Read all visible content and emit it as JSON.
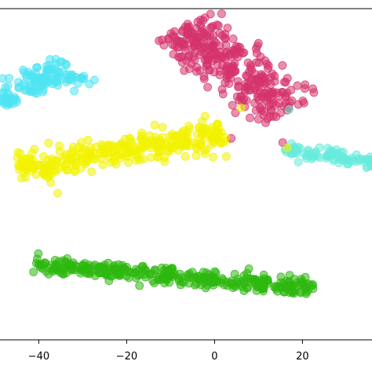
{
  "chart_data": {
    "type": "scatter",
    "xlim": [
      -49,
      36
    ],
    "ylim": [
      -58,
      62
    ],
    "x_ticks": [
      -40,
      -20,
      0,
      20
    ],
    "x_tick_labels": [
      "−40",
      "−20",
      "0",
      "20"
    ],
    "grid": false,
    "legend": "none",
    "series": [
      {
        "color": "#d6336c",
        "clusters": [
          {
            "from": [
              -8.0,
              55.0
            ],
            "to": [
              17.0,
              25.0
            ],
            "spread": 4.2,
            "count": 330
          }
        ]
      },
      {
        "color": "#4fe4f2",
        "clusters": [
          {
            "from": [
              -49.0,
              29.0
            ],
            "to": [
              -33.0,
              41.0
            ],
            "spread": 2.4,
            "count": 120
          },
          {
            "from": [
              -33.0,
              37.0
            ],
            "to": [
              -27.0,
              36.0
            ],
            "spread": 0.9,
            "count": 12
          }
        ]
      },
      {
        "color": "#f2f200",
        "clusters": [
          {
            "from": [
              -45.0,
              4.0
            ],
            "to": [
              2.0,
              17.0
            ],
            "spread": 2.8,
            "count": 320
          }
        ]
      },
      {
        "color": "#66ebdc",
        "clusters": [
          {
            "from": [
              16.0,
              11.0
            ],
            "to": [
              36.0,
              6.0
            ],
            "spread": 1.2,
            "count": 90
          }
        ]
      },
      {
        "color": "#2eb80f",
        "clusters": [
          {
            "from": [
              -41.0,
              -31.0
            ],
            "to": [
              23.0,
              -39.0
            ],
            "spread": 1.6,
            "count": 340
          }
        ]
      }
    ],
    "outliers": [
      {
        "x": 3.8,
        "y": 15.0,
        "color": "#d6336c"
      },
      {
        "x": 15.5,
        "y": 13.5,
        "color": "#d6336c"
      },
      {
        "x": 16.5,
        "y": 11.5,
        "color": "#f2f200"
      },
      {
        "x": 2.5,
        "y": 15.3,
        "color": "#f2f200"
      },
      {
        "x": 6.0,
        "y": 26.0,
        "color": "#f2f200"
      },
      {
        "x": 17.0,
        "y": 25.5,
        "color": "#66ebdc"
      }
    ]
  }
}
